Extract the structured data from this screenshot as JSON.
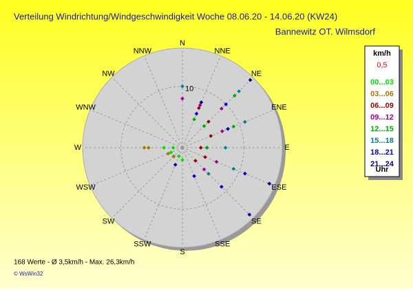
{
  "chart_data": {
    "type": "polar-scatter",
    "title": "Verteilung Windrichtung/Windgeschwindigkeit  Woche 08.06.20 - 14.06.20 (KW24)",
    "subtitle": "Bannewitz OT. Wilmsdorf",
    "footer": "168 Werte   -   Ø 3,5km/h   -   Max. 26,3km/h",
    "copyright": "© WsWin32",
    "legend_title": "km/h",
    "legend_subtitle": "0,5",
    "legend_footer": "Uhr",
    "direction_labels": [
      "N",
      "NNE",
      "NE",
      "ENE",
      "E",
      "ESE",
      "SE",
      "SSE",
      "S",
      "SSW",
      "SW",
      "WSW",
      "W",
      "WNW",
      "NW",
      "NNW"
    ],
    "rlim": [
      0,
      16
    ],
    "rticks": [
      10
    ],
    "series": [
      {
        "name": "00...03",
        "color": "#00dd00",
        "x": [
          270,
          270,
          180,
          202.5,
          247.5
        ],
        "values": [
          3,
          1.5,
          2,
          1.5,
          2
        ]
      },
      {
        "name": "03...06",
        "color": "#a07800",
        "x": [
          270,
          270,
          247.5,
          225
        ],
        "values": [
          5.5,
          6.2,
          2.5,
          2
        ]
      },
      {
        "name": "06...09",
        "color": "#990000",
        "x": [
          90,
          112.5,
          135,
          67.5,
          45,
          22.5
        ],
        "values": [
          3,
          4,
          3,
          5,
          6,
          7
        ]
      },
      {
        "name": "09...12",
        "color": "#990099",
        "x": [
          45,
          22.5,
          67.5,
          112.5,
          135,
          90,
          0
        ],
        "values": [
          9,
          7.5,
          7,
          6,
          5,
          4,
          8
        ]
      },
      {
        "name": "12...15",
        "color": "#00aa00",
        "x": [
          45,
          67.5,
          45,
          22.5,
          90
        ],
        "values": [
          12,
          9,
          5,
          5,
          4
        ]
      },
      {
        "name": "15...18",
        "color": "#008080",
        "x": [
          45,
          67.5,
          0,
          112.5,
          90,
          135
        ],
        "values": [
          13,
          11,
          10,
          9,
          7,
          6
        ]
      },
      {
        "name": "18...21",
        "color": "#0000cc",
        "x": [
          45,
          112.5,
          135,
          67.5,
          22.5,
          157.5
        ],
        "values": [
          10,
          11,
          9,
          8,
          6,
          5
        ]
      },
      {
        "name": "21...24",
        "color": "#000080",
        "x": [
          45,
          112.5,
          135,
          22.5,
          202.5
        ],
        "values": [
          15.6,
          15.3,
          15.4,
          8,
          3
        ]
      }
    ]
  }
}
